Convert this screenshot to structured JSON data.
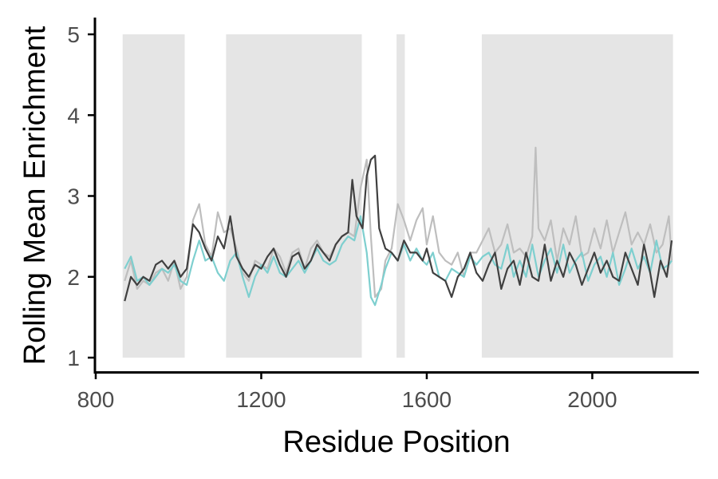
{
  "chart_data": {
    "type": "line",
    "xlabel": "Residue Position",
    "ylabel": "Rolling Mean Enrichment",
    "xlim": [
      800,
      2260
    ],
    "ylim": [
      0.95,
      5.25
    ],
    "x_ticks": [
      800,
      1200,
      1600,
      2000
    ],
    "y_ticks": [
      1,
      2,
      3,
      4,
      5
    ],
    "grid": false,
    "legend": "none",
    "shaded_regions": [
      {
        "x0": 865,
        "x1": 1015,
        "y0": 1,
        "y1": 5
      },
      {
        "x0": 1115,
        "x1": 1443,
        "y0": 1,
        "y1": 5
      },
      {
        "x0": 1527,
        "x1": 1547,
        "y0": 1,
        "y1": 5
      },
      {
        "x0": 1733,
        "x1": 2195,
        "y0": 1,
        "y1": 5
      }
    ],
    "shade_color": "#e5e5e5",
    "series": [
      {
        "color": "#bebebe",
        "x": [
          870,
          885,
          900,
          915,
          930,
          945,
          960,
          975,
          990,
          1005,
          1020,
          1035,
          1050,
          1065,
          1080,
          1095,
          1110,
          1125,
          1140,
          1155,
          1170,
          1185,
          1200,
          1215,
          1230,
          1245,
          1260,
          1275,
          1290,
          1305,
          1320,
          1335,
          1350,
          1365,
          1380,
          1395,
          1410,
          1425,
          1440,
          1455,
          1465,
          1475,
          1490,
          1500,
          1515,
          1530,
          1545,
          1560,
          1575,
          1590,
          1600,
          1615,
          1630,
          1645,
          1660,
          1675,
          1690,
          1705,
          1720,
          1735,
          1750,
          1765,
          1780,
          1795,
          1810,
          1825,
          1840,
          1855,
          1863,
          1870,
          1885,
          1900,
          1915,
          1930,
          1945,
          1960,
          1975,
          1990,
          2005,
          2020,
          2035,
          2050,
          2065,
          2080,
          2095,
          2110,
          2125,
          2140,
          2155,
          2170,
          2185,
          2192
        ],
        "y": [
          1.95,
          2.2,
          1.85,
          1.95,
          1.9,
          2.05,
          2.1,
          1.95,
          2.2,
          1.85,
          2.0,
          2.7,
          2.9,
          2.4,
          2.25,
          2.8,
          2.55,
          2.6,
          2.35,
          2.05,
          1.95,
          2.2,
          2.15,
          2.1,
          2.35,
          2.25,
          2.05,
          2.3,
          2.35,
          2.1,
          2.35,
          2.45,
          2.3,
          2.25,
          2.4,
          2.5,
          2.55,
          2.5,
          3.1,
          3.45,
          2.5,
          1.75,
          1.85,
          2.2,
          2.35,
          2.9,
          2.7,
          2.45,
          2.7,
          2.85,
          2.4,
          2.75,
          2.3,
          2.2,
          2.15,
          2.3,
          2.0,
          2.3,
          2.3,
          2.45,
          2.6,
          2.3,
          2.4,
          2.65,
          2.3,
          2.35,
          2.25,
          2.5,
          3.6,
          2.6,
          2.45,
          2.7,
          2.2,
          2.6,
          2.4,
          2.75,
          2.25,
          2.3,
          2.6,
          2.35,
          2.7,
          2.3,
          2.55,
          2.8,
          2.4,
          2.55,
          2.4,
          2.65,
          2.3,
          2.4,
          2.75,
          2.2
        ]
      },
      {
        "color": "#7ecfcf",
        "x": [
          870,
          885,
          900,
          915,
          930,
          945,
          960,
          975,
          990,
          1005,
          1020,
          1035,
          1050,
          1065,
          1080,
          1095,
          1110,
          1125,
          1140,
          1155,
          1170,
          1185,
          1200,
          1215,
          1230,
          1245,
          1260,
          1275,
          1290,
          1305,
          1320,
          1335,
          1350,
          1365,
          1380,
          1395,
          1410,
          1425,
          1440,
          1455,
          1465,
          1475,
          1490,
          1500,
          1515,
          1530,
          1545,
          1560,
          1575,
          1590,
          1600,
          1615,
          1630,
          1645,
          1660,
          1675,
          1690,
          1705,
          1720,
          1735,
          1750,
          1765,
          1780,
          1795,
          1810,
          1825,
          1840,
          1855,
          1870,
          1885,
          1900,
          1915,
          1930,
          1945,
          1960,
          1975,
          1990,
          2005,
          2020,
          2035,
          2050,
          2065,
          2080,
          2095,
          2110,
          2125,
          2140,
          2155,
          2170,
          2185,
          2192
        ],
        "y": [
          2.1,
          2.25,
          1.95,
          2.0,
          1.9,
          2.0,
          2.1,
          2.05,
          2.15,
          1.95,
          1.9,
          2.2,
          2.45,
          2.2,
          2.25,
          2.05,
          1.95,
          2.2,
          2.3,
          2.0,
          1.75,
          2.0,
          2.15,
          2.05,
          2.25,
          2.05,
          2.0,
          2.1,
          2.2,
          2.05,
          2.2,
          2.35,
          2.2,
          2.15,
          2.2,
          2.4,
          2.5,
          2.45,
          2.75,
          2.3,
          1.75,
          1.65,
          1.9,
          2.1,
          2.3,
          2.2,
          2.4,
          2.2,
          2.35,
          2.2,
          2.15,
          2.3,
          2.0,
          1.95,
          2.1,
          2.05,
          2.0,
          2.25,
          2.15,
          2.25,
          2.3,
          2.15,
          2.1,
          2.4,
          2.0,
          2.2,
          2.0,
          2.4,
          2.0,
          2.2,
          2.35,
          2.05,
          2.4,
          2.05,
          2.2,
          2.3,
          1.95,
          2.15,
          2.25,
          2.0,
          2.3,
          1.9,
          2.1,
          2.35,
          2.1,
          2.25,
          2.05,
          2.45,
          2.1,
          2.15,
          2.2
        ]
      },
      {
        "color": "#404040",
        "x": [
          870,
          885,
          900,
          915,
          930,
          945,
          960,
          975,
          990,
          1005,
          1020,
          1035,
          1050,
          1065,
          1080,
          1095,
          1110,
          1125,
          1140,
          1155,
          1170,
          1185,
          1200,
          1215,
          1230,
          1245,
          1260,
          1275,
          1290,
          1305,
          1320,
          1335,
          1350,
          1365,
          1380,
          1395,
          1410,
          1420,
          1430,
          1445,
          1455,
          1465,
          1475,
          1485,
          1500,
          1515,
          1530,
          1545,
          1560,
          1575,
          1590,
          1600,
          1615,
          1630,
          1645,
          1660,
          1675,
          1690,
          1705,
          1720,
          1735,
          1750,
          1765,
          1780,
          1795,
          1810,
          1825,
          1840,
          1855,
          1870,
          1885,
          1900,
          1915,
          1930,
          1945,
          1960,
          1975,
          2005,
          2020,
          2035,
          2050,
          2065,
          2080,
          2095,
          2110,
          2125,
          2140,
          2150,
          2165,
          2180,
          2192
        ],
        "y": [
          1.7,
          2.0,
          1.9,
          2.0,
          1.95,
          2.15,
          2.2,
          2.1,
          2.2,
          2.0,
          2.1,
          2.65,
          2.55,
          2.35,
          2.2,
          2.5,
          2.35,
          2.75,
          2.25,
          2.1,
          2.0,
          2.15,
          2.1,
          2.25,
          2.35,
          2.15,
          2.0,
          2.25,
          2.3,
          2.1,
          2.2,
          2.4,
          2.3,
          2.2,
          2.4,
          2.5,
          2.55,
          3.2,
          2.75,
          2.6,
          3.25,
          3.45,
          3.5,
          2.6,
          2.35,
          2.3,
          2.2,
          2.45,
          2.3,
          2.3,
          2.2,
          2.35,
          2.05,
          2.0,
          1.95,
          1.75,
          2.0,
          2.1,
          2.3,
          2.05,
          1.95,
          2.15,
          2.3,
          1.85,
          2.1,
          2.2,
          1.9,
          2.3,
          2.0,
          1.95,
          2.4,
          1.95,
          2.2,
          2.0,
          2.3,
          2.15,
          1.9,
          2.3,
          2.05,
          2.2,
          2.0,
          1.95,
          2.3,
          2.1,
          1.9,
          2.4,
          2.05,
          1.75,
          2.2,
          2.0,
          2.45
        ]
      }
    ]
  }
}
